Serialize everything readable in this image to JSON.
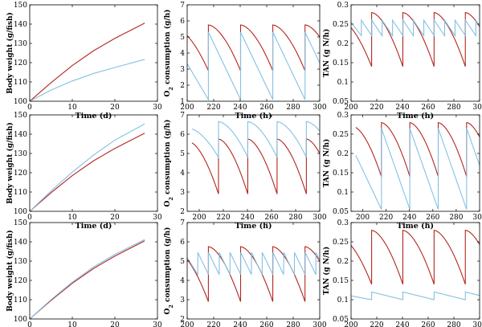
{
  "colors": {
    "red": "#b3261e",
    "blue": "#84c1e4"
  },
  "chart_data": [
    {
      "id": "bw1",
      "type": "line",
      "xlabel": "Time (d)",
      "ylabel": "Body weight (g/fish)",
      "xlim": [
        0,
        30
      ],
      "ylim": [
        100,
        150
      ],
      "xticks": [
        0,
        10,
        20,
        30
      ],
      "yticks": [
        100,
        110,
        120,
        130,
        140,
        150
      ],
      "series": [
        {
          "color": "red",
          "x": [
            0,
            5,
            10,
            15,
            20,
            27
          ],
          "y": [
            100,
            109.6,
            118.5,
            126.2,
            132.6,
            140.5
          ]
        },
        {
          "color": "blue",
          "x": [
            0,
            5,
            10,
            15,
            20,
            27
          ],
          "y": [
            100,
            105.8,
            110.5,
            114.4,
            117.5,
            121.7
          ]
        }
      ]
    },
    {
      "id": "o2_1",
      "type": "line",
      "xlabel": "Time (h)",
      "ylabel": "O2 consumption (g/h)",
      "xlim": [
        200,
        300
      ],
      "ylim": [
        1,
        7
      ],
      "xticks": [
        200,
        220,
        240,
        260,
        280,
        300
      ],
      "yticks": [
        1,
        2,
        3,
        4,
        5,
        6,
        7
      ],
      "series": [
        {
          "color": "red",
          "kind": "sawtooth",
          "start": 200,
          "end": 300,
          "period": 24.3,
          "offset": 216,
          "high": 5.75,
          "low": 2.9,
          "decay": "concave",
          "pre_high": 5.5
        },
        {
          "color": "blue",
          "kind": "sawtooth",
          "start": 200,
          "end": 300,
          "period": 24.3,
          "offset": 216,
          "high": 5.3,
          "low": 1.1,
          "decay": "linear",
          "pre_high": 4.5
        }
      ]
    },
    {
      "id": "tan1",
      "type": "line",
      "xlabel": "Time (h)",
      "ylabel": "TAN (g N/h)",
      "xlim": [
        200,
        300
      ],
      "ylim": [
        0.05,
        0.3
      ],
      "xticks": [
        200,
        220,
        240,
        260,
        280,
        300
      ],
      "yticks": [
        0.05,
        0.1,
        0.15,
        0.2,
        0.25,
        0.3
      ],
      "ytick_labels": [
        "0.05",
        "0.1",
        "0.15",
        "0.2",
        "0.25",
        "0.3"
      ],
      "series": [
        {
          "color": "red",
          "kind": "sawtooth",
          "start": 200,
          "end": 300,
          "period": 24.3,
          "offset": 216,
          "high": 0.28,
          "low": 0.14,
          "decay": "concave",
          "pre_high": 0.26
        },
        {
          "color": "blue",
          "kind": "sawtooth",
          "start": 200,
          "end": 300,
          "period": 8.1,
          "offset": 208,
          "high": 0.26,
          "low": 0.22,
          "decay": "linear",
          "pre_high": 0.255
        }
      ]
    },
    {
      "id": "bw2",
      "type": "line",
      "xlabel": "Time (d)",
      "ylabel": "Body weight (g/fish)",
      "xlim": [
        0,
        30
      ],
      "ylim": [
        100,
        150
      ],
      "xticks": [
        0,
        10,
        20,
        30
      ],
      "yticks": [
        100,
        110,
        120,
        130,
        140,
        150
      ],
      "series": [
        {
          "color": "red",
          "x": [
            0,
            5,
            10,
            15,
            20,
            27
          ],
          "y": [
            100,
            109.6,
            118.5,
            126.2,
            132.6,
            140.5
          ]
        },
        {
          "color": "blue",
          "x": [
            0,
            5,
            10,
            15,
            20,
            27
          ],
          "y": [
            100,
            110.5,
            120.3,
            129.2,
            136.9,
            145.3
          ]
        }
      ]
    },
    {
      "id": "o2_2",
      "type": "line",
      "xlabel": "Time (h)",
      "ylabel": "O2 consumption (g/h)",
      "xlim": [
        190,
        300
      ],
      "ylim": [
        2,
        7
      ],
      "xticks": [
        200,
        220,
        240,
        260,
        280,
        300
      ],
      "yticks": [
        2,
        3,
        4,
        5,
        6,
        7
      ],
      "series": [
        {
          "color": "red",
          "kind": "sawtooth",
          "start": 194,
          "end": 300,
          "period": 24.3,
          "offset": 216,
          "high": 5.75,
          "low": 2.9,
          "decay": "concave",
          "pre_high": 5.6
        },
        {
          "color": "blue",
          "kind": "sawtooth",
          "start": 194,
          "end": 300,
          "period": 24.3,
          "offset": 216,
          "high": 6.65,
          "low": 4.8,
          "decay": "concave",
          "pre_high": 6.3
        }
      ]
    },
    {
      "id": "tan2",
      "type": "line",
      "xlabel": "Time (h)",
      "ylabel": "TAN (g N/h)",
      "xlim": [
        190,
        300
      ],
      "ylim": [
        0.05,
        0.3
      ],
      "xticks": [
        200,
        220,
        240,
        260,
        280,
        300
      ],
      "yticks": [
        0.05,
        0.1,
        0.15,
        0.2,
        0.25,
        0.3
      ],
      "ytick_labels": [
        "0.05",
        "0.1",
        "0.15",
        "0.2",
        "0.25",
        "0.3"
      ],
      "series": [
        {
          "color": "red",
          "kind": "sawtooth",
          "start": 194,
          "end": 300,
          "period": 24.3,
          "offset": 216,
          "high": 0.28,
          "low": 0.14,
          "decay": "concave",
          "pre_high": 0.27
        },
        {
          "color": "blue",
          "kind": "sawtooth",
          "start": 194,
          "end": 300,
          "period": 24.3,
          "offset": 216,
          "high": 0.265,
          "low": 0.055,
          "decay": "linear",
          "pre_high": 0.21
        }
      ]
    },
    {
      "id": "bw3",
      "type": "line",
      "xlabel": "Time (d)",
      "ylabel": "Body weight (g/fish)",
      "xlim": [
        0,
        30
      ],
      "ylim": [
        100,
        150
      ],
      "xticks": [
        0,
        10,
        20,
        30
      ],
      "yticks": [
        100,
        110,
        120,
        130,
        140,
        150
      ],
      "series": [
        {
          "color": "red",
          "x": [
            0,
            5,
            10,
            15,
            20,
            27
          ],
          "y": [
            100,
            109.6,
            118.5,
            126.2,
            132.6,
            140.5
          ]
        },
        {
          "color": "blue",
          "x": [
            0,
            5,
            10,
            15,
            20,
            27
          ],
          "y": [
            100,
            110.0,
            119.1,
            127.0,
            133.5,
            141.2
          ]
        }
      ]
    },
    {
      "id": "o2_3",
      "type": "line",
      "xlabel": "Time (h)",
      "ylabel": "O2 consumption (g/h)",
      "xlim": [
        200,
        300
      ],
      "ylim": [
        2,
        7
      ],
      "xticks": [
        200,
        220,
        240,
        260,
        280,
        300
      ],
      "yticks": [
        2,
        3,
        4,
        5,
        6,
        7
      ],
      "series": [
        {
          "color": "red",
          "kind": "sawtooth",
          "start": 200,
          "end": 300,
          "period": 24.3,
          "offset": 216,
          "high": 5.75,
          "low": 2.9,
          "decay": "concave",
          "pre_high": 5.5
        },
        {
          "color": "blue",
          "kind": "sawtooth",
          "start": 200,
          "end": 300,
          "period": 8.1,
          "offset": 208,
          "high": 5.45,
          "low": 4.3,
          "decay": "linear",
          "pre_high": 5.2
        }
      ]
    },
    {
      "id": "tan3",
      "type": "line",
      "xlabel": "Time (h)",
      "ylabel": "TAN (g N/h)",
      "xlim": [
        200,
        300
      ],
      "ylim": [
        0.05,
        0.3
      ],
      "xticks": [
        200,
        220,
        240,
        260,
        280,
        300
      ],
      "yticks": [
        0.05,
        0.1,
        0.15,
        0.2,
        0.25,
        0.3
      ],
      "ytick_labels": [
        "0.05",
        "0.1",
        "0.15",
        "0.2",
        "0.25",
        "0.3"
      ],
      "series": [
        {
          "color": "red",
          "kind": "sawtooth",
          "start": 200,
          "end": 300,
          "period": 24.3,
          "offset": 216,
          "high": 0.28,
          "low": 0.14,
          "decay": "concave",
          "pre_high": 0.26
        },
        {
          "color": "blue",
          "kind": "sawtooth",
          "start": 200,
          "end": 300,
          "period": 24.3,
          "offset": 216,
          "high": 0.12,
          "low": 0.1,
          "decay": "linear",
          "pre_high": 0.115
        }
      ]
    }
  ]
}
